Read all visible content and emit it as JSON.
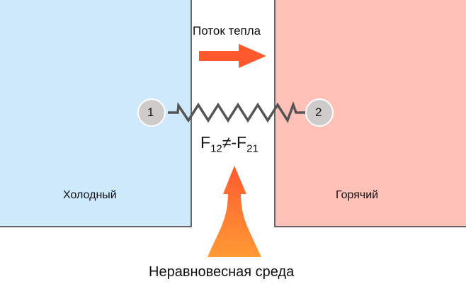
{
  "cold_body": {
    "label": "Холодный",
    "color": "#cde9fb"
  },
  "hot_body": {
    "label": "Горячий",
    "color": "#ffc0b8"
  },
  "heat_flow": {
    "label": "Поток тепла",
    "arrow_color": "#ff5a2e"
  },
  "particles": [
    {
      "label": "1"
    },
    {
      "label": "2"
    }
  ],
  "force_relation": {
    "f": "F",
    "sub1": "12",
    "neq": "≠-",
    "f2": "F",
    "sub2": "21"
  },
  "medium": {
    "label": "Неравновесная среда"
  }
}
